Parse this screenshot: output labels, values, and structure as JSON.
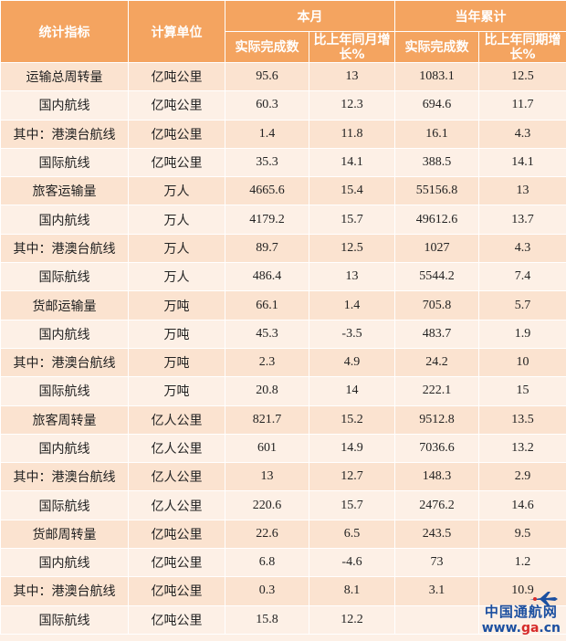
{
  "header": {
    "col_indicator": "统计指标",
    "col_unit": "计算单位",
    "group_month": "本月",
    "group_ytd": "当年累计",
    "actual": "实际完成数",
    "growth_month": "比上年同月增长%",
    "actual_ytd": "实际完成数",
    "growth_ytd": "比上年同期增长%"
  },
  "rows": [
    {
      "indicator": "运输总周转量",
      "unit": "亿吨公里",
      "m_val": "95.6",
      "m_grow": "13",
      "y_val": "1083.1",
      "y_grow": "12.5"
    },
    {
      "indicator": "国内航线",
      "unit": "亿吨公里",
      "m_val": "60.3",
      "m_grow": "12.3",
      "y_val": "694.6",
      "y_grow": "11.7"
    },
    {
      "indicator": "其中：港澳台航线",
      "unit": "亿吨公里",
      "m_val": "1.4",
      "m_grow": "11.8",
      "y_val": "16.1",
      "y_grow": "4.3"
    },
    {
      "indicator": "国际航线",
      "unit": "亿吨公里",
      "m_val": "35.3",
      "m_grow": "14.1",
      "y_val": "388.5",
      "y_grow": "14.1"
    },
    {
      "indicator": "旅客运输量",
      "unit": "万人",
      "m_val": "4665.6",
      "m_grow": "15.4",
      "y_val": "55156.8",
      "y_grow": "13"
    },
    {
      "indicator": "国内航线",
      "unit": "万人",
      "m_val": "4179.2",
      "m_grow": "15.7",
      "y_val": "49612.6",
      "y_grow": "13.7"
    },
    {
      "indicator": "其中：港澳台航线",
      "unit": "万人",
      "m_val": "89.7",
      "m_grow": "12.5",
      "y_val": "1027",
      "y_grow": "4.3"
    },
    {
      "indicator": "国际航线",
      "unit": "万人",
      "m_val": "486.4",
      "m_grow": "13",
      "y_val": "5544.2",
      "y_grow": "7.4"
    },
    {
      "indicator": "货邮运输量",
      "unit": "万吨",
      "m_val": "66.1",
      "m_grow": "1.4",
      "y_val": "705.8",
      "y_grow": "5.7"
    },
    {
      "indicator": "国内航线",
      "unit": "万吨",
      "m_val": "45.3",
      "m_grow": "-3.5",
      "y_val": "483.7",
      "y_grow": "1.9"
    },
    {
      "indicator": "其中：港澳台航线",
      "unit": "万吨",
      "m_val": "2.3",
      "m_grow": "4.9",
      "y_val": "24.2",
      "y_grow": "10"
    },
    {
      "indicator": "国际航线",
      "unit": "万吨",
      "m_val": "20.8",
      "m_grow": "14",
      "y_val": "222.1",
      "y_grow": "15"
    },
    {
      "indicator": "旅客周转量",
      "unit": "亿人公里",
      "m_val": "821.7",
      "m_grow": "15.2",
      "y_val": "9512.8",
      "y_grow": "13.5"
    },
    {
      "indicator": "国内航线",
      "unit": "亿人公里",
      "m_val": "601",
      "m_grow": "14.9",
      "y_val": "7036.6",
      "y_grow": "13.2"
    },
    {
      "indicator": "其中：港澳台航线",
      "unit": "亿人公里",
      "m_val": "13",
      "m_grow": "12.7",
      "y_val": "148.3",
      "y_grow": "2.9"
    },
    {
      "indicator": "国际航线",
      "unit": "亿人公里",
      "m_val": "220.6",
      "m_grow": "15.7",
      "y_val": "2476.2",
      "y_grow": "14.6"
    },
    {
      "indicator": "货邮周转量",
      "unit": "亿吨公里",
      "m_val": "22.6",
      "m_grow": "6.5",
      "y_val": "243.5",
      "y_grow": "9.5"
    },
    {
      "indicator": "国内航线",
      "unit": "亿吨公里",
      "m_val": "6.8",
      "m_grow": "-4.6",
      "y_val": "73",
      "y_grow": "1.2"
    },
    {
      "indicator": "其中：港澳台航线",
      "unit": "亿吨公里",
      "m_val": "0.3",
      "m_grow": "8.1",
      "y_val": "3.1",
      "y_grow": "10.9"
    },
    {
      "indicator": "国际航线",
      "unit": "亿吨公里",
      "m_val": "15.8",
      "m_grow": "12.2",
      "y_val": "",
      "y_grow": ""
    }
  ],
  "watermark": {
    "logo_name": "中国通航网",
    "logo_url_prefix": "www.",
    "logo_url_main": "ga",
    "logo_url_suffix": ".cn",
    "logo_icon": "airplane-icon"
  },
  "colors": {
    "header_bg": "#f4a460",
    "row_odd": "#fbe3d0",
    "row_even": "#fdf0e6",
    "logo_blue": "#1b4fa0",
    "logo_red": "#d62a2a"
  }
}
